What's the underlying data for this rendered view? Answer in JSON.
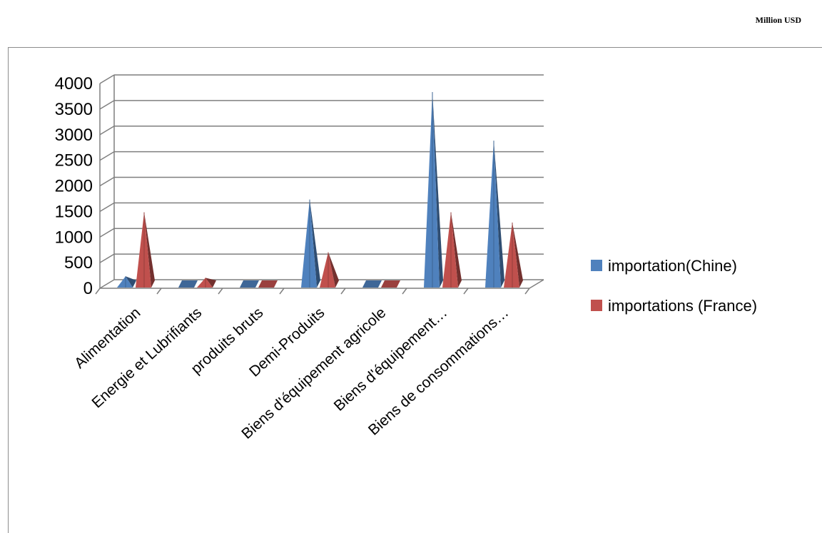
{
  "unit_label": "Million USD",
  "chart_data": {
    "type": "bar",
    "style": "3d-pyramid",
    "categories": [
      "Alimentation",
      "Energie et Lubrifiants",
      "produits bruts",
      "Demi-Produits",
      "Biens d'équipement agricole",
      "Biens d'équipement…",
      "Biens de consommations…"
    ],
    "series": [
      {
        "name": "importation(Chine)",
        "color": "#4F81BD",
        "values": [
          150,
          0,
          0,
          1650,
          0,
          3750,
          2800
        ]
      },
      {
        "name": "importations (France)",
        "color": "#C0504D",
        "values": [
          1400,
          120,
          0,
          620,
          0,
          1400,
          1200
        ]
      }
    ],
    "yticks": [
      "0",
      "500",
      "1000",
      "1500",
      "2000",
      "2500",
      "3000",
      "3500",
      "4000"
    ],
    "ylim": [
      0,
      4000
    ],
    "grid": true,
    "legend_position": "right"
  }
}
